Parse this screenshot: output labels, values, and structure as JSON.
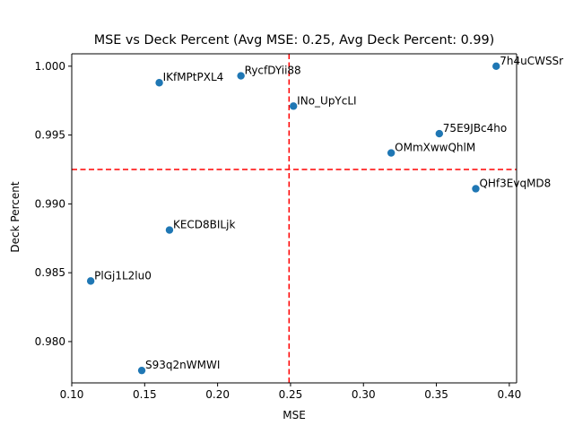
{
  "chart_data": {
    "type": "scatter",
    "title": "MSE vs Deck Percent (Avg MSE: 0.25, Avg Deck Percent: 0.99)",
    "xlabel": "MSE",
    "ylabel": "Deck Percent",
    "xlim": [
      0.1,
      0.405
    ],
    "ylim": [
      0.977,
      1.0009
    ],
    "x_ticks": [
      0.1,
      0.15,
      0.2,
      0.25,
      0.3,
      0.35,
      0.4
    ],
    "x_tick_labels": [
      "0.10",
      "0.15",
      "0.20",
      "0.25",
      "0.30",
      "0.35",
      "0.40"
    ],
    "y_ticks": [
      0.98,
      0.985,
      0.99,
      0.995,
      1.0
    ],
    "y_tick_labels": [
      "0.980",
      "0.985",
      "0.990",
      "0.995",
      "1.000"
    ],
    "grid": false,
    "point_color": "#1f77b4",
    "reference_line_color": "#ff0000",
    "reference_lines": {
      "x": 0.249,
      "y": 0.9925
    },
    "points": [
      {
        "label": "7h4uCWSSr",
        "x": 0.391,
        "y": 1.0
      },
      {
        "label": "RycfDYii88",
        "x": 0.216,
        "y": 0.9993
      },
      {
        "label": "IKfMPtPXL4",
        "x": 0.16,
        "y": 0.9988
      },
      {
        "label": "INo_UpYcLI",
        "x": 0.252,
        "y": 0.9971
      },
      {
        "label": "75E9JBc4ho",
        "x": 0.352,
        "y": 0.9951
      },
      {
        "label": "OMmXwwQhlM",
        "x": 0.319,
        "y": 0.9937
      },
      {
        "label": "QHf3EvqMD8",
        "x": 0.377,
        "y": 0.9911
      },
      {
        "label": "KECD8BILjk",
        "x": 0.167,
        "y": 0.9881
      },
      {
        "label": "PlGj1L2lu0",
        "x": 0.113,
        "y": 0.9844
      },
      {
        "label": "S93q2nWMWI",
        "x": 0.148,
        "y": 0.9779
      }
    ]
  }
}
